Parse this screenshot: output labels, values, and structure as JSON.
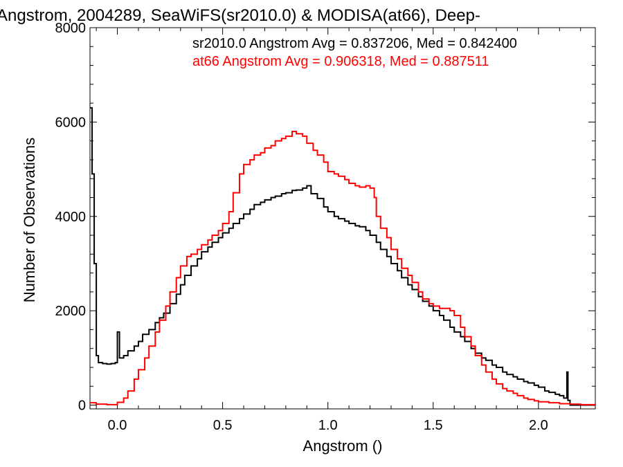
{
  "chart_data": {
    "type": "line",
    "title": "Angstrom, 2004289, SeaWiFS(sr2010.0) & MODISA(at66), Deep-",
    "xlabel": "Angstrom ()",
    "ylabel": "Number of Observations",
    "xlim": [
      -0.13,
      2.27
    ],
    "ylim": [
      -80,
      8000
    ],
    "xticks": [
      0.0,
      0.5,
      1.0,
      1.5,
      2.0
    ],
    "xtick_labels": [
      "0.0",
      "0.5",
      "1.0",
      "1.5",
      "2.0"
    ],
    "yticks": [
      0,
      2000,
      4000,
      6000,
      8000
    ],
    "ytick_labels": [
      "0",
      "2000",
      "4000",
      "6000",
      "8000"
    ],
    "grid": false,
    "legend_position": "top-right",
    "annotations": [
      {
        "text": "sr2010.0 Angstrom Avg = 0.837206, Med = 0.842400",
        "color": "#000000"
      },
      {
        "text": "at66 Angstrom Avg = 0.906318, Med = 0.887511",
        "color": "#ff0000"
      }
    ],
    "series": [
      {
        "color": "#000000",
        "step": true,
        "points": [
          [
            -0.13,
            6300
          ],
          [
            -0.12,
            4900
          ],
          [
            -0.11,
            3000
          ],
          [
            -0.1,
            1050
          ],
          [
            -0.09,
            900
          ],
          [
            -0.07,
            880
          ],
          [
            -0.05,
            870
          ],
          [
            -0.03,
            880
          ],
          [
            -0.01,
            900
          ],
          [
            0.0,
            1550
          ],
          [
            0.01,
            1000
          ],
          [
            0.03,
            1050
          ],
          [
            0.05,
            1150
          ],
          [
            0.08,
            1250
          ],
          [
            0.1,
            1350
          ],
          [
            0.12,
            1500
          ],
          [
            0.15,
            1600
          ],
          [
            0.18,
            1750
          ],
          [
            0.2,
            1850
          ],
          [
            0.22,
            1950
          ],
          [
            0.25,
            2150
          ],
          [
            0.28,
            2350
          ],
          [
            0.3,
            2550
          ],
          [
            0.32,
            2750
          ],
          [
            0.35,
            2950
          ],
          [
            0.38,
            3100
          ],
          [
            0.4,
            3250
          ],
          [
            0.43,
            3350
          ],
          [
            0.45,
            3450
          ],
          [
            0.48,
            3550
          ],
          [
            0.5,
            3650
          ],
          [
            0.53,
            3750
          ],
          [
            0.55,
            3850
          ],
          [
            0.58,
            3950
          ],
          [
            0.6,
            4050
          ],
          [
            0.63,
            4150
          ],
          [
            0.65,
            4250
          ],
          [
            0.68,
            4300
          ],
          [
            0.7,
            4350
          ],
          [
            0.73,
            4400
          ],
          [
            0.75,
            4430
          ],
          [
            0.78,
            4480
          ],
          [
            0.8,
            4500
          ],
          [
            0.83,
            4550
          ],
          [
            0.85,
            4560
          ],
          [
            0.88,
            4600
          ],
          [
            0.9,
            4650
          ],
          [
            0.92,
            4480
          ],
          [
            0.95,
            4380
          ],
          [
            0.98,
            4200
          ],
          [
            1.0,
            4100
          ],
          [
            1.03,
            4000
          ],
          [
            1.05,
            3950
          ],
          [
            1.08,
            3900
          ],
          [
            1.1,
            3850
          ],
          [
            1.13,
            3800
          ],
          [
            1.15,
            3780
          ],
          [
            1.18,
            3700
          ],
          [
            1.2,
            3600
          ],
          [
            1.23,
            3450
          ],
          [
            1.25,
            3300
          ],
          [
            1.28,
            3150
          ],
          [
            1.3,
            3000
          ],
          [
            1.33,
            2850
          ],
          [
            1.35,
            2700
          ],
          [
            1.38,
            2550
          ],
          [
            1.4,
            2450
          ],
          [
            1.43,
            2300
          ],
          [
            1.45,
            2200
          ],
          [
            1.48,
            2100
          ],
          [
            1.5,
            2000
          ],
          [
            1.53,
            1900
          ],
          [
            1.55,
            1800
          ],
          [
            1.58,
            1650
          ],
          [
            1.6,
            1550
          ],
          [
            1.63,
            1450
          ],
          [
            1.65,
            1350
          ],
          [
            1.68,
            1200
          ],
          [
            1.7,
            1100
          ],
          [
            1.73,
            1000
          ],
          [
            1.75,
            950
          ],
          [
            1.78,
            850
          ],
          [
            1.8,
            800
          ],
          [
            1.83,
            700
          ],
          [
            1.85,
            650
          ],
          [
            1.88,
            600
          ],
          [
            1.9,
            550
          ],
          [
            1.93,
            500
          ],
          [
            1.95,
            470
          ],
          [
            1.98,
            420
          ],
          [
            2.0,
            380
          ],
          [
            2.03,
            300
          ],
          [
            2.05,
            270
          ],
          [
            2.08,
            230
          ],
          [
            2.1,
            200
          ],
          [
            2.12,
            150
          ],
          [
            2.135,
            700
          ],
          [
            2.14,
            100
          ],
          [
            2.15,
            0
          ],
          [
            2.27,
            0
          ]
        ]
      },
      {
        "color": "#ff0000",
        "step": true,
        "points": [
          [
            -0.13,
            50
          ],
          [
            -0.1,
            20
          ],
          [
            -0.05,
            10
          ],
          [
            0.0,
            60
          ],
          [
            0.03,
            150
          ],
          [
            0.05,
            300
          ],
          [
            0.08,
            550
          ],
          [
            0.1,
            750
          ],
          [
            0.13,
            1000
          ],
          [
            0.15,
            1250
          ],
          [
            0.18,
            1550
          ],
          [
            0.2,
            1800
          ],
          [
            0.23,
            2100
          ],
          [
            0.25,
            2400
          ],
          [
            0.28,
            2700
          ],
          [
            0.3,
            2950
          ],
          [
            0.33,
            3150
          ],
          [
            0.35,
            3200
          ],
          [
            0.38,
            3300
          ],
          [
            0.4,
            3400
          ],
          [
            0.43,
            3500
          ],
          [
            0.45,
            3600
          ],
          [
            0.48,
            3700
          ],
          [
            0.5,
            3850
          ],
          [
            0.53,
            4100
          ],
          [
            0.55,
            4500
          ],
          [
            0.58,
            4900
          ],
          [
            0.6,
            5100
          ],
          [
            0.63,
            5200
          ],
          [
            0.65,
            5300
          ],
          [
            0.68,
            5350
          ],
          [
            0.7,
            5450
          ],
          [
            0.73,
            5500
          ],
          [
            0.75,
            5600
          ],
          [
            0.78,
            5650
          ],
          [
            0.8,
            5700
          ],
          [
            0.83,
            5800
          ],
          [
            0.85,
            5750
          ],
          [
            0.88,
            5700
          ],
          [
            0.9,
            5550
          ],
          [
            0.93,
            5400
          ],
          [
            0.95,
            5300
          ],
          [
            0.98,
            5150
          ],
          [
            1.0,
            4950
          ],
          [
            1.03,
            4900
          ],
          [
            1.05,
            4850
          ],
          [
            1.08,
            4780
          ],
          [
            1.1,
            4700
          ],
          [
            1.13,
            4650
          ],
          [
            1.15,
            4620
          ],
          [
            1.18,
            4650
          ],
          [
            1.2,
            4600
          ],
          [
            1.22,
            4400
          ],
          [
            1.23,
            4000
          ],
          [
            1.25,
            3750
          ],
          [
            1.28,
            3550
          ],
          [
            1.3,
            3300
          ],
          [
            1.33,
            3100
          ],
          [
            1.35,
            2900
          ],
          [
            1.38,
            2750
          ],
          [
            1.4,
            2600
          ],
          [
            1.43,
            2400
          ],
          [
            1.45,
            2250
          ],
          [
            1.48,
            2150
          ],
          [
            1.5,
            2100
          ],
          [
            1.53,
            2050
          ],
          [
            1.55,
            2050
          ],
          [
            1.58,
            2000
          ],
          [
            1.6,
            1900
          ],
          [
            1.63,
            1650
          ],
          [
            1.65,
            1450
          ],
          [
            1.68,
            1250
          ],
          [
            1.7,
            1050
          ],
          [
            1.73,
            850
          ],
          [
            1.75,
            700
          ],
          [
            1.78,
            550
          ],
          [
            1.8,
            450
          ],
          [
            1.83,
            350
          ],
          [
            1.85,
            300
          ],
          [
            1.88,
            250
          ],
          [
            1.9,
            200
          ],
          [
            1.93,
            150
          ],
          [
            1.95,
            120
          ],
          [
            1.98,
            90
          ],
          [
            2.0,
            70
          ],
          [
            2.05,
            50
          ],
          [
            2.1,
            30
          ],
          [
            2.15,
            20
          ],
          [
            2.2,
            10
          ],
          [
            2.27,
            5
          ]
        ]
      }
    ]
  }
}
